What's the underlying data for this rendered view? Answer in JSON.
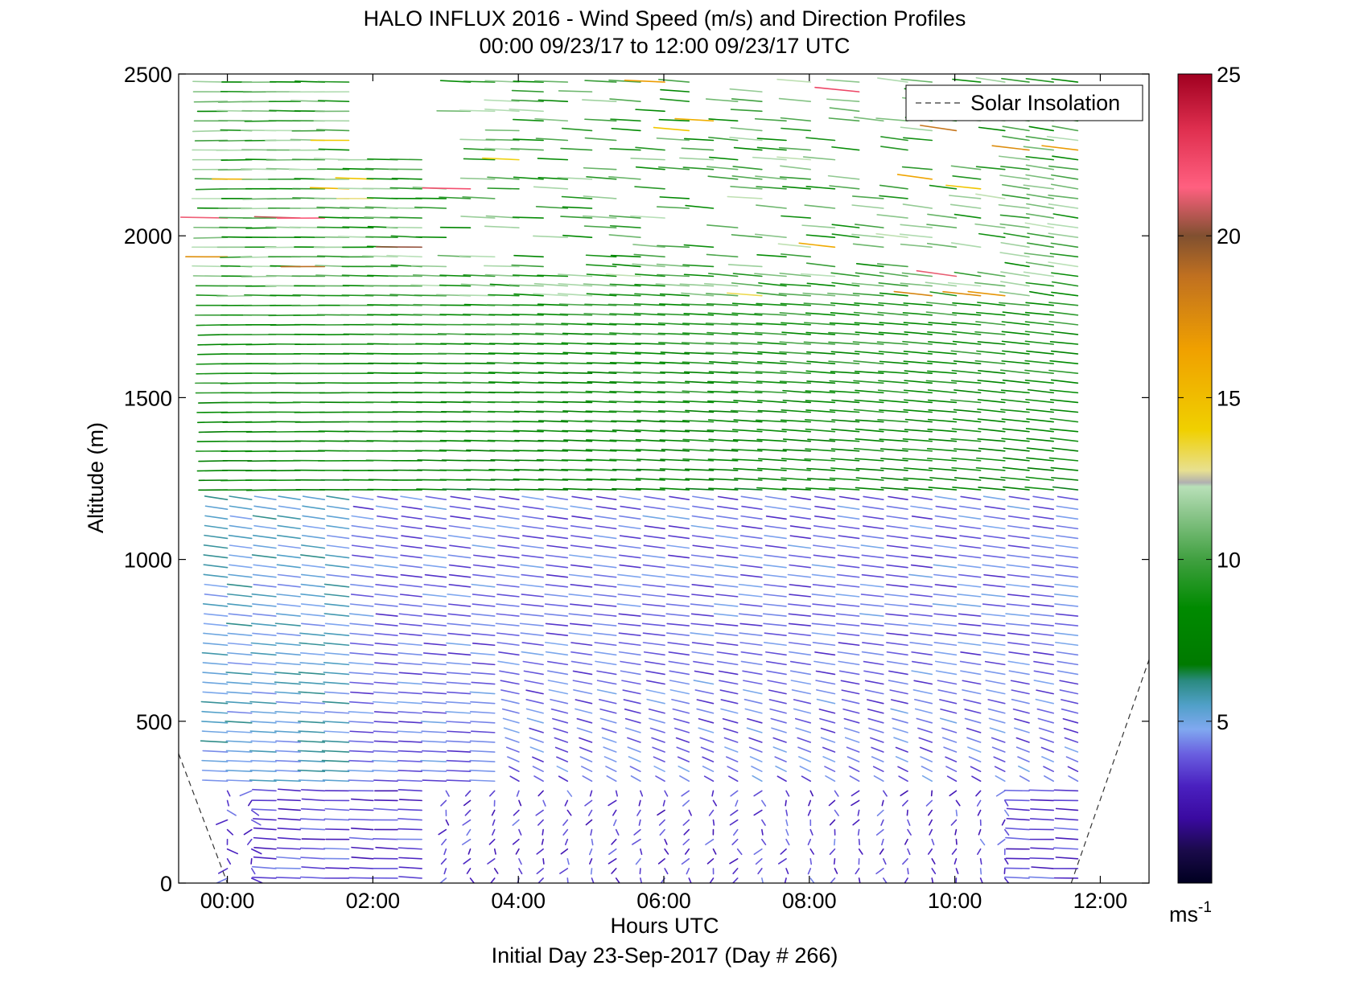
{
  "chart_data": {
    "type": "wind-barb-profile",
    "title": "HALO INFLUX 2016 - Wind Speed (m/s) and Direction Profiles",
    "subtitle": "00:00 09/23/17 to 12:00 09/23/17  UTC",
    "xlabel": "Hours UTC",
    "ylabel": "Altitude (m)",
    "footer": "Initial Day 23-Sep-2017 (Day # 266)",
    "xlim": [
      -0.67,
      12.67
    ],
    "ylim": [
      0,
      2500
    ],
    "xticks": [
      0,
      2,
      4,
      6,
      8,
      10,
      12
    ],
    "xtick_labels": [
      "00:00",
      "02:00",
      "04:00",
      "06:00",
      "08:00",
      "10:00",
      "12:00"
    ],
    "yticks": [
      0,
      500,
      1000,
      1500,
      2000,
      2500
    ],
    "ytick_labels": [
      "0",
      "500",
      "1000",
      "1500",
      "2000",
      "2500"
    ],
    "legend": {
      "entries": [
        "Solar Insolation"
      ],
      "location": "top-right"
    },
    "solar_insolation": {
      "style": "dashed",
      "color": "#333333",
      "morning": [
        [
          -0.67,
          400
        ],
        [
          0.0,
          0
        ]
      ],
      "evening": [
        [
          11.6,
          0
        ],
        [
          12.67,
          690
        ]
      ]
    },
    "colorbar": {
      "ticks": [
        5,
        10,
        15,
        20,
        25
      ],
      "tick_labels": [
        "5",
        "10",
        "15",
        "20",
        "25"
      ],
      "range": [
        0,
        25
      ],
      "unit_label": "ms",
      "unit_exponent": "-1"
    },
    "wind_profile_summary": {
      "time_step_hours": 0.167,
      "altitude_step_m": 30,
      "layers": [
        {
          "altitude_range": [
            0,
            300
          ],
          "speed_ms": 3,
          "direction": "variable, mostly from north/south"
        },
        {
          "altitude_range": [
            300,
            1200
          ],
          "speed_ms": 4,
          "direction": "from east/north-east"
        },
        {
          "altitude_range": [
            1200,
            1800
          ],
          "speed_ms": 8,
          "direction": "from east"
        },
        {
          "altitude_range": [
            1800,
            2500
          ],
          "speed_ms": 10,
          "direction": "from east/south-east"
        }
      ]
    }
  }
}
